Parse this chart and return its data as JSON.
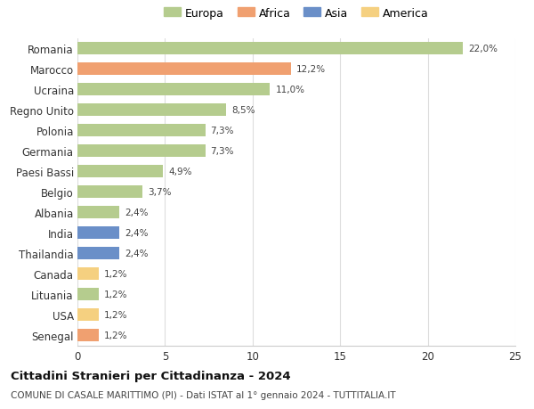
{
  "countries": [
    "Romania",
    "Marocco",
    "Ucraina",
    "Regno Unito",
    "Polonia",
    "Germania",
    "Paesi Bassi",
    "Belgio",
    "Albania",
    "India",
    "Thailandia",
    "Canada",
    "Lituania",
    "USA",
    "Senegal"
  ],
  "values": [
    22.0,
    12.2,
    11.0,
    8.5,
    7.3,
    7.3,
    4.9,
    3.7,
    2.4,
    2.4,
    2.4,
    1.2,
    1.2,
    1.2,
    1.2
  ],
  "labels": [
    "22,0%",
    "12,2%",
    "11,0%",
    "8,5%",
    "7,3%",
    "7,3%",
    "4,9%",
    "3,7%",
    "2,4%",
    "2,4%",
    "2,4%",
    "1,2%",
    "1,2%",
    "1,2%",
    "1,2%"
  ],
  "continents": [
    "Europa",
    "Africa",
    "Europa",
    "Europa",
    "Europa",
    "Europa",
    "Europa",
    "Europa",
    "Europa",
    "Asia",
    "Asia",
    "America",
    "Europa",
    "America",
    "Africa"
  ],
  "continent_colors": {
    "Europa": "#b5cc8e",
    "Africa": "#f0a070",
    "Asia": "#6a8fc8",
    "America": "#f5d080"
  },
  "legend_order": [
    "Europa",
    "Africa",
    "Asia",
    "America"
  ],
  "title": "Cittadini Stranieri per Cittadinanza - 2024",
  "subtitle": "COMUNE DI CASALE MARITTIMO (PI) - Dati ISTAT al 1° gennaio 2024 - TUTTITALIA.IT",
  "xlim": [
    0,
    25
  ],
  "xticks": [
    0,
    5,
    10,
    15,
    20,
    25
  ],
  "background_color": "#ffffff",
  "grid_color": "#dddddd",
  "bar_height": 0.6
}
